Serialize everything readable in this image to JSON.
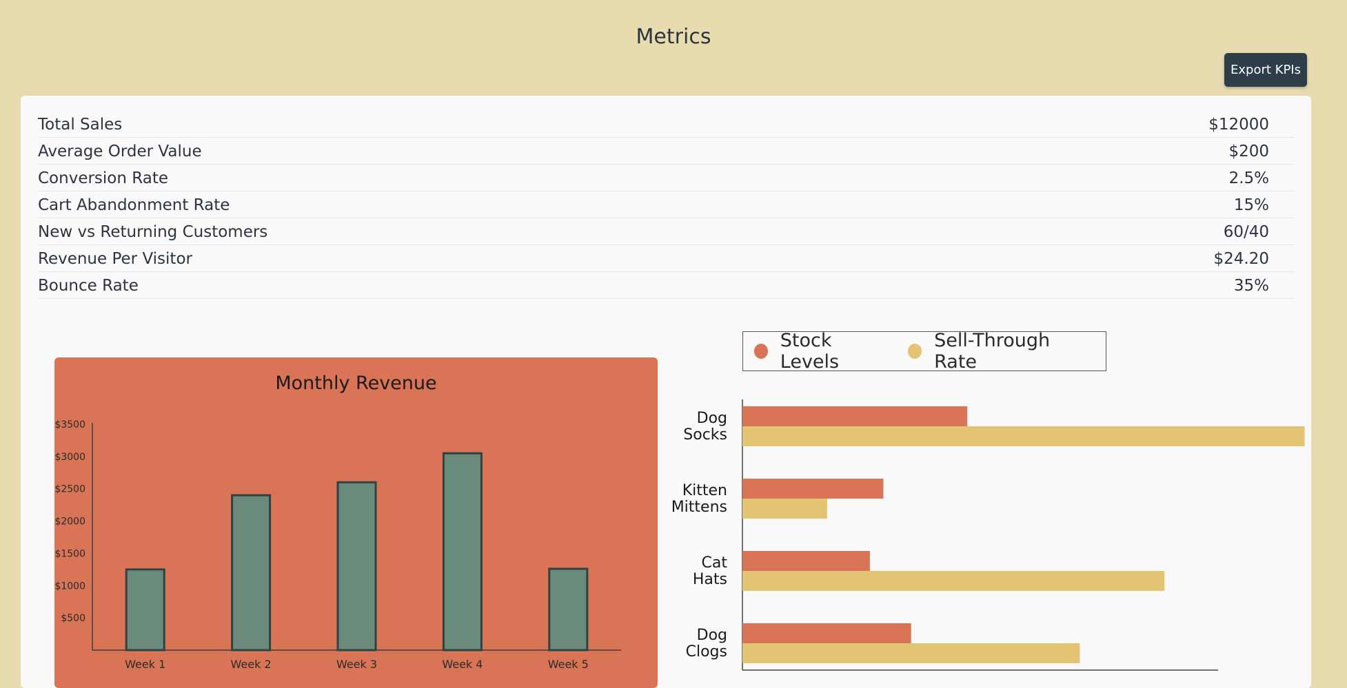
{
  "header": {
    "title": "Metrics",
    "export_label": "Export KPIs"
  },
  "kpis": [
    {
      "label": "Total Sales",
      "value": "$12000"
    },
    {
      "label": "Average Order Value",
      "value": "$200"
    },
    {
      "label": "Conversion Rate",
      "value": "2.5%"
    },
    {
      "label": "Cart Abandonment Rate",
      "value": "15%"
    },
    {
      "label": "New vs Returning Customers",
      "value": "60/40"
    },
    {
      "label": "Revenue Per Visitor",
      "value": "$24.20"
    },
    {
      "label": "Bounce Rate",
      "value": "35%"
    }
  ],
  "colors": {
    "background": "#e9dbb0",
    "revenue_card": "#d97456",
    "revenue_bar": "#6a8a7c",
    "stock_levels": "#d97456",
    "sell_through": "#e3c472",
    "button": "#2d3e48"
  },
  "chart_data": [
    {
      "type": "bar",
      "title": "Monthly Revenue",
      "categories": [
        "Week 1",
        "Week 2",
        "Week 3",
        "Week 4",
        "Week 5"
      ],
      "values": [
        1250,
        2400,
        2600,
        3050,
        1260
      ],
      "yticks": [
        500,
        1000,
        1500,
        2000,
        2500,
        3000,
        3500
      ],
      "ytick_labels": [
        "$500",
        "$1000",
        "$1500",
        "$2000",
        "$2500",
        "$3000",
        "$3500"
      ],
      "ylim": [
        0,
        3500
      ],
      "grid": false
    },
    {
      "type": "bar",
      "orientation": "horizontal",
      "categories": [
        [
          "Dog",
          "Socks"
        ],
        [
          "Kitten",
          "Mittens"
        ],
        [
          "Cat",
          "Hats"
        ],
        [
          "Dog",
          "Clogs"
        ]
      ],
      "series": [
        {
          "name": "Stock Levels",
          "values": [
            30,
            18.8,
            17,
            22.5
          ]
        },
        {
          "name": "Sell-Through Rate",
          "values": [
            75,
            11.3,
            56.3,
            45
          ]
        }
      ],
      "xlim": [
        0,
        80
      ],
      "legend": "top",
      "grid": false
    }
  ]
}
